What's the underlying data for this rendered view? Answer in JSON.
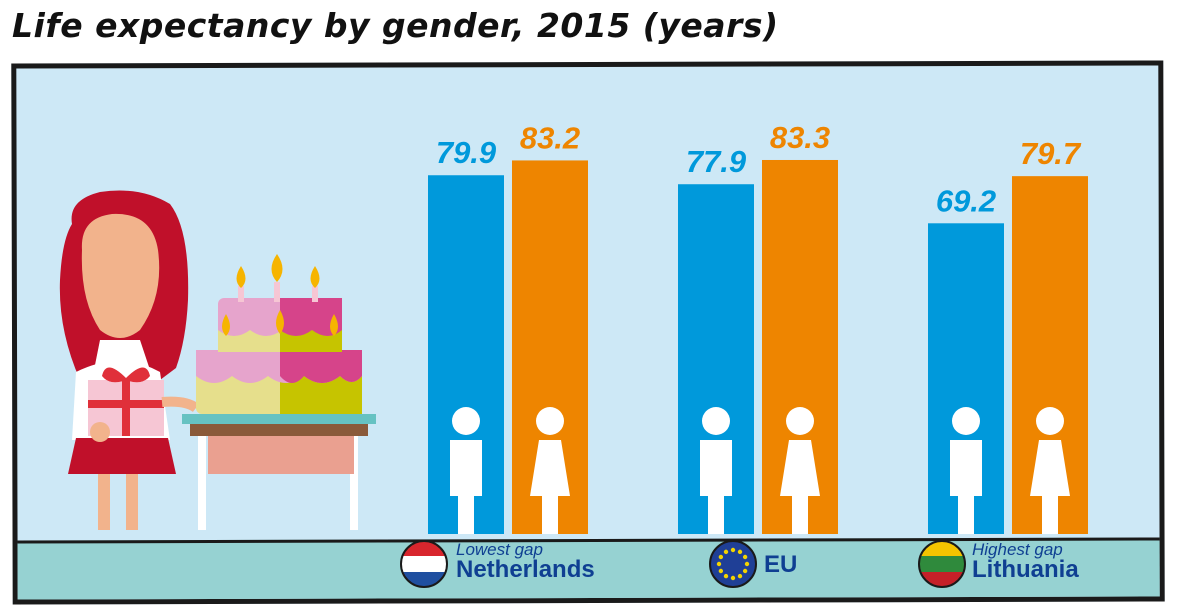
{
  "title": "Life expectancy by gender, 2015 (years)",
  "colors": {
    "male": "#0099db",
    "female": "#ee8500",
    "background": "#cde8f6",
    "ground": "#96d2d2",
    "label_text": "#0f3f92"
  },
  "groups": [
    {
      "name": "Netherlands",
      "tag": "Lowest gap",
      "flag": "netherlands-flag-icon"
    },
    {
      "name": "EU",
      "tag": "",
      "flag": "eu-flag-icon"
    },
    {
      "name": "Lithuania",
      "tag": "Highest gap",
      "flag": "lithuania-flag-icon"
    }
  ],
  "chart_data": {
    "type": "bar",
    "title": "Life expectancy by gender, 2015 (years)",
    "categories": [
      "Netherlands",
      "EU",
      "Lithuania"
    ],
    "series": [
      {
        "name": "",
        "icon": "male-icon",
        "color": "#0099db",
        "values": [
          79.9,
          77.9,
          69.2
        ]
      },
      {
        "name": "",
        "icon": "female-icon",
        "color": "#ee8500",
        "values": [
          83.2,
          83.3,
          79.7
        ]
      }
    ],
    "annotations": [
      "Lowest gap",
      "Highest gap"
    ],
    "grid": false,
    "legend": "none"
  }
}
